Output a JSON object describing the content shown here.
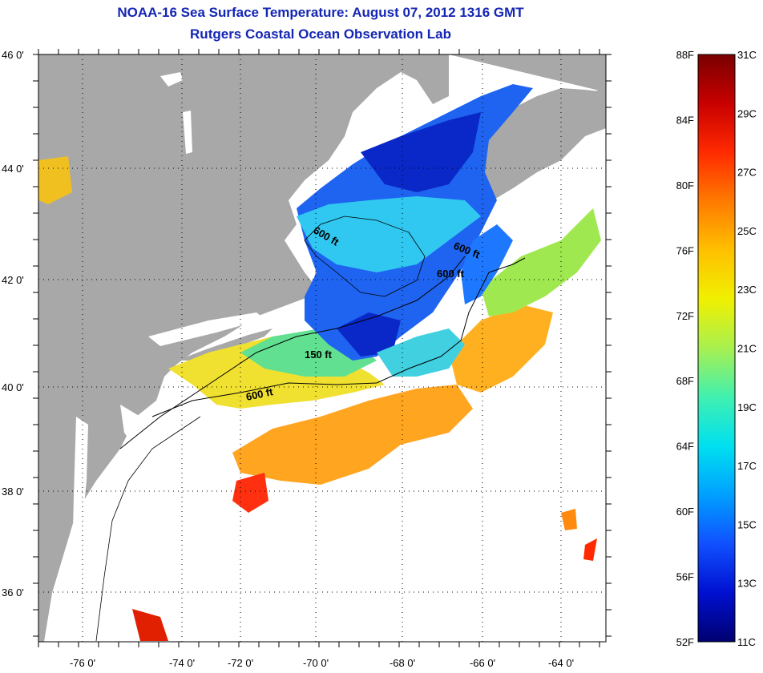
{
  "title": "NOAA-16 Sea Surface Temperature:  August 07, 2012 1316 GMT",
  "subtitle": "Rutgers Coastal Ocean Observation Lab",
  "lon_ticks": [
    "-76 0'",
    "-74 0'",
    "-72 0'",
    "-70 0'",
    "-68 0'",
    "-66 0'",
    "-64 0'"
  ],
  "lat_ticks": [
    "46 0'",
    "44 0'",
    "42 0'",
    "40 0'",
    "38 0'",
    "36 0'"
  ],
  "contour_labels": [
    "600 ft",
    "600 ft",
    "600 ft",
    "150 ft",
    "600 ft"
  ],
  "colorbar": {
    "f_labels": [
      "88F",
      "84F",
      "80F",
      "76F",
      "72F",
      "68F",
      "64F",
      "60F",
      "56F",
      "52F"
    ],
    "c_labels": [
      "31C",
      "29C",
      "27C",
      "25C",
      "23C",
      "21C",
      "19C",
      "17C",
      "15C",
      "13C",
      "11C"
    ],
    "stops": [
      "#7a0000",
      "#c80000",
      "#ff2a00",
      "#ff7a00",
      "#ffc000",
      "#f0f000",
      "#a8f050",
      "#40f0b0",
      "#00e0f0",
      "#00a0ff",
      "#1050ff",
      "#0010d0",
      "#000070"
    ]
  },
  "colors": {
    "land": "#a8a8a8",
    "no_data": "#ffffff",
    "title": "#1426b4"
  }
}
